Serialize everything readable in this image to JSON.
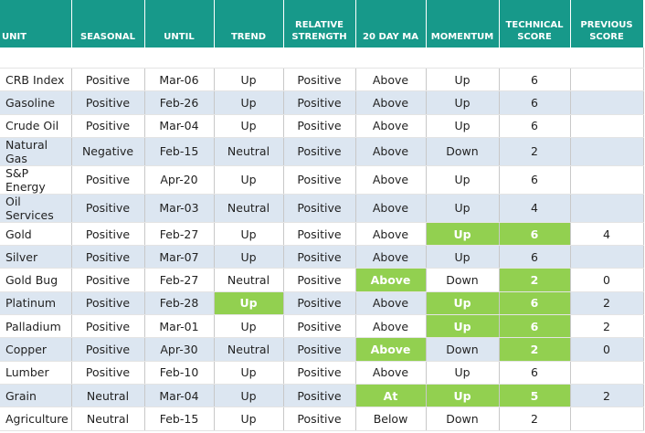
{
  "table": {
    "columns": [
      "UNIT",
      "SEASONAL",
      "UNTIL",
      "TREND",
      "RELATIVE STRENGTH",
      "20 DAY MA",
      "MOMENTUM",
      "TECHNICAL SCORE",
      "PREVIOUS SCORE"
    ],
    "rows": [
      [
        "CRB Index",
        "Positive",
        "Mar-06",
        "Up",
        "Positive",
        "Above",
        "Up",
        6,
        null
      ],
      [
        "Gasoline",
        "Positive",
        "Feb-26",
        "Up",
        "Positive",
        "Above",
        "Up",
        6,
        null
      ],
      [
        "Crude Oil",
        "Positive",
        "Mar-04",
        "Up",
        "Positive",
        "Above",
        "Up",
        6,
        null
      ],
      [
        "Natural Gas",
        "Negative",
        "Feb-15",
        "Neutral",
        "Positive",
        "Above",
        "Down",
        2,
        null
      ],
      [
        "S&P Energy",
        "Positive",
        "Apr-20",
        "Up",
        "Positive",
        "Above",
        "Up",
        6,
        null
      ],
      [
        "Oil Services",
        "Positive",
        "Mar-03",
        "Neutral",
        "Positive",
        "Above",
        "Up",
        4,
        null
      ],
      [
        "Gold",
        "Positive",
        "Feb-27",
        "Up",
        "Positive",
        "Above",
        "Up",
        6,
        4
      ],
      [
        "Silver",
        "Positive",
        "Mar-07",
        "Up",
        "Positive",
        "Above",
        "Up",
        6,
        null
      ],
      [
        "Gold Bug",
        "Positive",
        "Feb-27",
        "Neutral",
        "Positive",
        "Above",
        "Down",
        2,
        0
      ],
      [
        "Platinum",
        "Positive",
        "Feb-28",
        "Up",
        "Positive",
        "Above",
        "Up",
        6,
        2
      ],
      [
        "Palladium",
        "Positive",
        "Mar-01",
        "Up",
        "Positive",
        "Above",
        "Up",
        6,
        2
      ],
      [
        "Copper",
        "Positive",
        "Apr-30",
        "Neutral",
        "Positive",
        "Above",
        "Down",
        2,
        0
      ],
      [
        "Lumber",
        "Positive",
        "Feb-10",
        "Up",
        "Positive",
        "Above",
        "Up",
        6,
        null
      ],
      [
        "Grain",
        "Neutral",
        "Mar-04",
        "Up",
        "Positive",
        "At",
        "Up",
        5,
        2
      ],
      [
        "Agriculture",
        "Neutral",
        "Feb-15",
        "Up",
        "Positive",
        "Below",
        "Down",
        2,
        null
      ]
    ],
    "highlighted": [
      [
        6,
        6
      ],
      [
        6,
        7
      ],
      [
        8,
        5
      ],
      [
        8,
        7
      ],
      [
        9,
        3
      ],
      [
        9,
        6
      ],
      [
        9,
        7
      ],
      [
        10,
        6
      ],
      [
        10,
        7
      ],
      [
        11,
        5
      ],
      [
        11,
        7
      ],
      [
        13,
        5
      ],
      [
        13,
        6
      ],
      [
        13,
        7
      ]
    ],
    "header_color": "#17998a",
    "stripe_color": "#dce6f1",
    "highlight_color": "#92d050"
  }
}
